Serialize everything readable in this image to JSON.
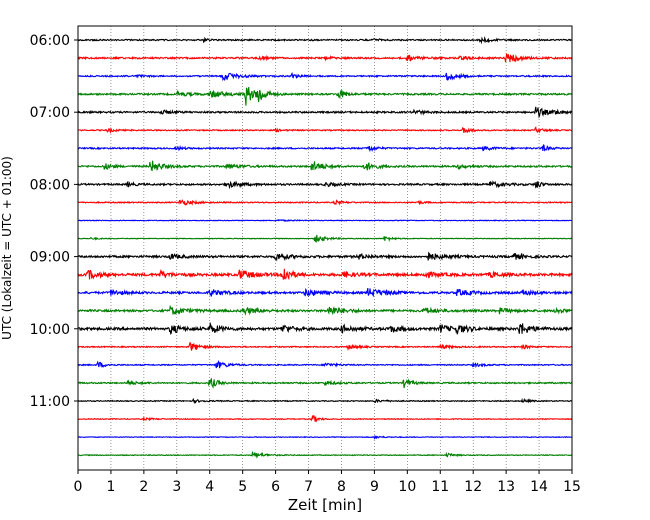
{
  "chart_data": {
    "type": "line",
    "subtype": "seismic-helicorder",
    "xlabel": "Zeit  [min]",
    "ylabel": "UTC (Lokalzeit = UTC + 01:00)",
    "xlim": [
      0,
      15
    ],
    "x_ticks": [
      0,
      1,
      2,
      3,
      4,
      5,
      6,
      7,
      8,
      9,
      10,
      11,
      12,
      13,
      14,
      15
    ],
    "x_tick_labels": [
      "0",
      "1",
      "2",
      "3",
      "4",
      "5",
      "6",
      "7",
      "8",
      "9",
      "10",
      "11",
      "12",
      "13",
      "14",
      "15"
    ],
    "y_tick_labels": [
      "06:00",
      "07:00",
      "08:00",
      "09:00",
      "10:00",
      "11:00"
    ],
    "y_tick_rows": [
      0,
      4,
      8,
      12,
      16,
      20
    ],
    "vertical_grid": "dotted",
    "minutes_per_trace": 15,
    "trace_colors": [
      "#000000",
      "#ff0000",
      "#0000ff",
      "#008000"
    ],
    "traces": [
      {
        "start": "06:00",
        "noise": 0.1,
        "events": [
          [
            12.2,
            0.35,
            0.3
          ],
          [
            3.8,
            0.25,
            0.15
          ],
          [
            9.0,
            0.25,
            0.15
          ]
        ]
      },
      {
        "start": "06:15",
        "noise": 0.12,
        "events": [
          [
            10.0,
            0.6,
            0.3
          ],
          [
            13.0,
            0.9,
            0.3
          ],
          [
            5.5,
            0.3,
            0.2
          ],
          [
            7.5,
            0.25,
            0.2
          ],
          [
            11.6,
            0.3,
            0.3
          ]
        ]
      },
      {
        "start": "06:30",
        "noise": 0.1,
        "events": [
          [
            4.4,
            0.6,
            0.4
          ],
          [
            6.5,
            0.35,
            0.2
          ],
          [
            11.2,
            0.7,
            0.3
          ],
          [
            1.8,
            0.25,
            0.2
          ]
        ]
      },
      {
        "start": "06:45",
        "noise": 0.12,
        "events": [
          [
            5.1,
            1.6,
            0.2
          ],
          [
            5.45,
            1.5,
            0.2
          ],
          [
            4.0,
            0.5,
            0.5
          ],
          [
            7.9,
            0.8,
            0.2
          ],
          [
            3.0,
            0.3,
            0.4
          ]
        ]
      },
      {
        "start": "07:00",
        "noise": 0.12,
        "events": [
          [
            13.9,
            0.8,
            0.3
          ],
          [
            2.5,
            0.3,
            0.3
          ],
          [
            10.2,
            0.3,
            0.3
          ],
          [
            14.5,
            0.3,
            0.2
          ]
        ]
      },
      {
        "start": "07:15",
        "noise": 0.08,
        "events": [
          [
            11.7,
            0.5,
            0.2
          ],
          [
            0.9,
            0.3,
            0.2
          ],
          [
            13.9,
            0.4,
            0.2
          ],
          [
            6.0,
            0.2,
            0.2
          ]
        ]
      },
      {
        "start": "07:30",
        "noise": 0.1,
        "events": [
          [
            8.8,
            0.5,
            0.2
          ],
          [
            14.1,
            0.5,
            0.2
          ],
          [
            12.3,
            0.3,
            0.3
          ],
          [
            3.0,
            0.25,
            0.2
          ]
        ]
      },
      {
        "start": "07:45",
        "noise": 0.12,
        "events": [
          [
            2.2,
            1.0,
            0.3
          ],
          [
            7.1,
            0.9,
            0.3
          ],
          [
            8.7,
            0.7,
            0.3
          ],
          [
            0.8,
            0.5,
            0.2
          ],
          [
            4.5,
            0.35,
            0.4
          ],
          [
            11.5,
            0.3,
            0.3
          ]
        ]
      },
      {
        "start": "08:00",
        "noise": 0.12,
        "events": [
          [
            4.5,
            0.5,
            0.4
          ],
          [
            12.5,
            0.4,
            0.4
          ],
          [
            13.9,
            0.7,
            0.15
          ],
          [
            1.5,
            0.3,
            0.2
          ],
          [
            7.5,
            0.3,
            0.3
          ]
        ]
      },
      {
        "start": "08:15",
        "noise": 0.08,
        "events": [
          [
            3.1,
            0.5,
            0.3
          ],
          [
            7.8,
            0.3,
            0.2
          ],
          [
            10.3,
            0.2,
            0.2
          ]
        ]
      },
      {
        "start": "08:30",
        "noise": 0.05,
        "events": [
          [
            6.0,
            0.1,
            0.5
          ]
        ]
      },
      {
        "start": "08:45",
        "noise": 0.05,
        "events": [
          [
            7.2,
            0.6,
            0.3
          ],
          [
            9.3,
            0.4,
            0.2
          ],
          [
            0.4,
            0.15,
            0.2
          ]
        ]
      },
      {
        "start": "09:00",
        "noise": 0.15,
        "events": [
          [
            6.0,
            0.5,
            0.4
          ],
          [
            10.6,
            0.6,
            0.4
          ],
          [
            13.2,
            0.5,
            0.3
          ],
          [
            8.5,
            0.4,
            0.3
          ],
          [
            2.8,
            0.4,
            0.3
          ]
        ]
      },
      {
        "start": "09:15",
        "noise": 0.18,
        "events": [
          [
            6.2,
            1.6,
            0.2
          ],
          [
            0.3,
            0.7,
            0.3
          ],
          [
            4.9,
            0.7,
            0.4
          ],
          [
            2.5,
            0.5,
            0.3
          ],
          [
            8.0,
            0.4,
            0.4
          ],
          [
            10.5,
            0.4,
            0.4
          ],
          [
            12.5,
            0.4,
            0.3
          ]
        ]
      },
      {
        "start": "09:30",
        "noise": 0.15,
        "events": [
          [
            8.8,
            0.6,
            0.5
          ],
          [
            4.0,
            0.5,
            0.4
          ],
          [
            6.9,
            0.5,
            0.4
          ],
          [
            11.5,
            0.5,
            0.4
          ],
          [
            1.0,
            0.4,
            0.3
          ],
          [
            13.5,
            0.4,
            0.3
          ]
        ]
      },
      {
        "start": "09:45",
        "noise": 0.15,
        "events": [
          [
            7.6,
            0.7,
            0.4
          ],
          [
            2.8,
            0.6,
            0.4
          ],
          [
            5.0,
            0.5,
            0.4
          ],
          [
            10.5,
            0.4,
            0.4
          ],
          [
            12.8,
            0.4,
            0.3
          ],
          [
            14.5,
            0.4,
            0.3
          ]
        ]
      },
      {
        "start": "10:00",
        "noise": 0.18,
        "events": [
          [
            13.4,
            1.0,
            0.3
          ],
          [
            4.0,
            0.7,
            0.3
          ],
          [
            2.8,
            0.7,
            0.3
          ],
          [
            6.2,
            0.6,
            0.3
          ],
          [
            11.0,
            0.6,
            0.3
          ],
          [
            11.5,
            0.6,
            0.3
          ],
          [
            8.0,
            0.5,
            0.4
          ],
          [
            9.5,
            0.5,
            0.3
          ]
        ]
      },
      {
        "start": "10:15",
        "noise": 0.08,
        "events": [
          [
            3.4,
            0.7,
            0.3
          ],
          [
            8.2,
            0.3,
            0.3
          ],
          [
            11.0,
            0.3,
            0.3
          ],
          [
            13.5,
            0.3,
            0.2
          ]
        ]
      },
      {
        "start": "10:30",
        "noise": 0.08,
        "events": [
          [
            4.2,
            0.6,
            0.3
          ],
          [
            0.6,
            0.5,
            0.2
          ],
          [
            7.5,
            0.3,
            0.3
          ],
          [
            12.0,
            0.25,
            0.3
          ]
        ]
      },
      {
        "start": "10:45",
        "noise": 0.1,
        "events": [
          [
            4.0,
            0.9,
            0.2
          ],
          [
            9.9,
            0.7,
            0.2
          ],
          [
            1.5,
            0.3,
            0.3
          ],
          [
            7.5,
            0.3,
            0.3
          ]
        ]
      },
      {
        "start": "11:00",
        "noise": 0.07,
        "events": [
          [
            3.5,
            0.2,
            0.3
          ],
          [
            9.0,
            0.2,
            0.3
          ],
          [
            13.5,
            0.25,
            0.2
          ]
        ]
      },
      {
        "start": "11:15",
        "noise": 0.06,
        "events": [
          [
            7.1,
            0.7,
            0.15
          ],
          [
            2.0,
            0.15,
            0.3
          ]
        ]
      },
      {
        "start": "11:30",
        "noise": 0.05,
        "events": [
          [
            9.0,
            0.15,
            0.3
          ]
        ]
      },
      {
        "start": "11:45",
        "noise": 0.06,
        "events": [
          [
            5.3,
            0.5,
            0.3
          ],
          [
            11.2,
            0.3,
            0.2
          ]
        ]
      }
    ]
  }
}
